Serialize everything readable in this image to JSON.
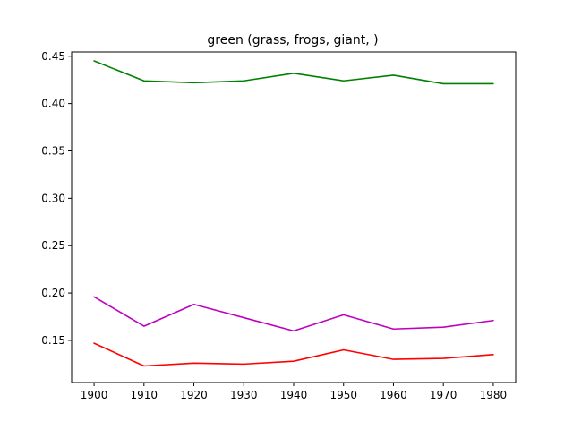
{
  "chart_data": {
    "type": "line",
    "title": "green (grass, frogs, giant, )",
    "xlabel": "",
    "ylabel": "",
    "x": [
      1900,
      1910,
      1920,
      1930,
      1940,
      1950,
      1960,
      1970,
      1980
    ],
    "xlim": [
      1895.5,
      1984.5
    ],
    "ylim": [
      0.1055,
      0.4545
    ],
    "xticks": [
      1900,
      1910,
      1920,
      1930,
      1940,
      1950,
      1960,
      1970,
      1980
    ],
    "xtick_labels": [
      "1900",
      "1910",
      "1920",
      "1930",
      "1940",
      "1950",
      "1960",
      "1970",
      "1980"
    ],
    "yticks": [
      0.15,
      0.2,
      0.25,
      0.3,
      0.35,
      0.4,
      0.45
    ],
    "ytick_labels": [
      "0.15",
      "0.20",
      "0.25",
      "0.30",
      "0.35",
      "0.40",
      "0.45"
    ],
    "grid": false,
    "legend": "none",
    "series": [
      {
        "color": "#008000",
        "values": [
          0.445,
          0.424,
          0.422,
          0.424,
          0.432,
          0.424,
          0.43,
          0.421,
          0.421
        ]
      },
      {
        "color": "#bf00bf",
        "values": [
          0.196,
          0.165,
          0.188,
          0.174,
          0.16,
          0.177,
          0.162,
          0.164,
          0.171
        ]
      },
      {
        "color": "#ff0000",
        "values": [
          0.147,
          0.123,
          0.126,
          0.125,
          0.128,
          0.14,
          0.13,
          0.131,
          0.135
        ]
      }
    ]
  }
}
